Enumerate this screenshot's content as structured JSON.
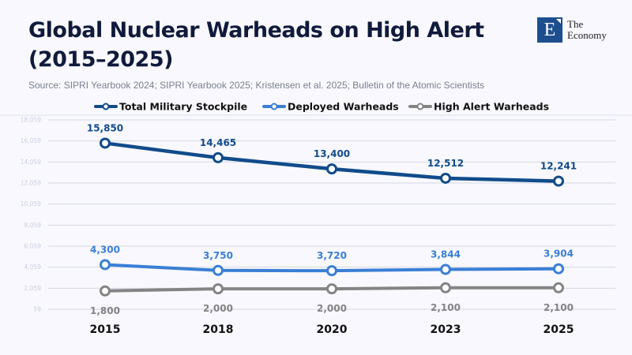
{
  "header": {
    "title_line1": "Global Nuclear Warheads on High Alert",
    "title_line2": "(2015–2025)",
    "source": "Source: SIPRI Yearbook 2024; SIPRI Yearbook 2025; Kristensen et al. 2025; Bulletin of the Atomic Scientists"
  },
  "logo": {
    "letter": "E",
    "line1": "The",
    "line2": "Economy",
    "color": "#1d4f8f"
  },
  "chart_data": {
    "type": "line",
    "title": "Global Nuclear Warheads on High Alert (2015–2025)",
    "categories": [
      "2015",
      "2018",
      "2020",
      "2023",
      "2025"
    ],
    "y_ticks": [
      "59",
      "2,059",
      "4,059",
      "6,059",
      "8,059",
      "10,059",
      "12,059",
      "14,059",
      "16,059",
      "18,059"
    ],
    "y_tick_values": [
      59,
      2059,
      4059,
      6059,
      8059,
      10059,
      12059,
      14059,
      16059,
      18059
    ],
    "ylim": [
      59,
      18059
    ],
    "grid": true,
    "legend_position": "top",
    "series": [
      {
        "name": "Total Military Stockpile",
        "color": "#114b8a",
        "values": [
          15850,
          14465,
          13400,
          12512,
          12241
        ],
        "labels": [
          "15,850",
          "14,465",
          "13,400",
          "12,512",
          "12,241"
        ],
        "label_pos": "above"
      },
      {
        "name": "Deployed Warheads",
        "color": "#3a7fd5",
        "values": [
          4300,
          3750,
          3720,
          3844,
          3904
        ],
        "labels": [
          "4,300",
          "3,750",
          "3,720",
          "3,844",
          "3,904"
        ],
        "label_pos": "above"
      },
      {
        "name": "High Alert Warheads",
        "color": "#848484",
        "values": [
          1800,
          2000,
          2000,
          2100,
          2100
        ],
        "labels": [
          "1,800",
          "2,000",
          "2,000",
          "2,100",
          "2,100"
        ],
        "label_pos": "below"
      }
    ]
  }
}
